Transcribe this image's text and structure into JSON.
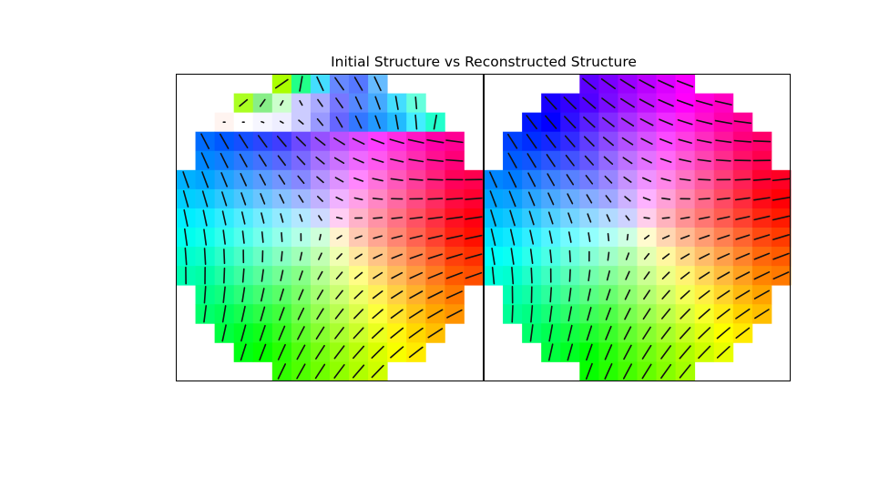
{
  "chart_data": {
    "type": "heatmap",
    "title": "Initial Structure vs Reconstructed Structure",
    "grid": "16x16 per panel, circular mask, color = in-plane angle (hue), stick = direction, length = in-plane magnitude",
    "panels": [
      {
        "name": "Initial Structure",
        "cells": [
          {
            "row": 0,
            "col": 5,
            "color": "#aaff00",
            "angle": 35,
            "mag": 0.9
          },
          {
            "row": 0,
            "col": 6,
            "color": "#22ff88",
            "angle": 80,
            "mag": 0.9
          },
          {
            "row": 0,
            "col": 7,
            "color": "#44ddff",
            "angle": 115,
            "mag": 0.9
          },
          {
            "row": 0,
            "col": 8,
            "color": "#6688ff",
            "angle": 125,
            "mag": 0.9
          },
          {
            "row": 0,
            "col": 9,
            "color": "#5577ff",
            "angle": 120,
            "mag": 0.9
          },
          {
            "row": 0,
            "col": 10,
            "color": "#66bbff",
            "angle": 115,
            "mag": 0.9
          },
          {
            "row": 1,
            "col": 3,
            "color": "#aaff22",
            "angle": 40,
            "mag": 0.6
          },
          {
            "row": 1,
            "col": 4,
            "color": "#88ee88",
            "angle": 55,
            "mag": 0.5
          },
          {
            "row": 1,
            "col": 5,
            "color": "#ccffcc",
            "angle": 60,
            "mag": 0.3
          },
          {
            "row": 1,
            "col": 6,
            "color": "#ccccff",
            "angle": 120,
            "mag": 0.3
          },
          {
            "row": 1,
            "col": 7,
            "color": "#aaaaff",
            "angle": 125,
            "mag": 0.5
          },
          {
            "row": 1,
            "col": 8,
            "color": "#7777ff",
            "angle": 125,
            "mag": 0.7
          },
          {
            "row": 1,
            "col": 9,
            "color": "#5588ff",
            "angle": 115,
            "mag": 0.8
          },
          {
            "row": 1,
            "col": 10,
            "color": "#44aaff",
            "angle": 110,
            "mag": 0.8
          },
          {
            "row": 1,
            "col": 11,
            "color": "#44ddff",
            "angle": 100,
            "mag": 0.8
          },
          {
            "row": 1,
            "col": 12,
            "color": "#66ffdd",
            "angle": 95,
            "mag": 0.7
          },
          {
            "row": 2,
            "col": 2,
            "color": "#fff4f0",
            "angle": 0,
            "mag": 0.1
          },
          {
            "row": 2,
            "col": 3,
            "color": "#ffffff",
            "angle": 0,
            "mag": 0.1
          },
          {
            "row": 2,
            "col": 4,
            "color": "#f6f6ff",
            "angle": 160,
            "mag": 0.15
          },
          {
            "row": 2,
            "col": 5,
            "color": "#eeeeff",
            "angle": 150,
            "mag": 0.2
          },
          {
            "row": 2,
            "col": 6,
            "color": "#ccccff",
            "angle": 140,
            "mag": 0.35
          },
          {
            "row": 2,
            "col": 7,
            "color": "#9999ff",
            "angle": 130,
            "mag": 0.5
          },
          {
            "row": 2,
            "col": 8,
            "color": "#6666ff",
            "angle": 120,
            "mag": 0.7
          },
          {
            "row": 2,
            "col": 9,
            "color": "#3377ff",
            "angle": 115,
            "mag": 0.8
          },
          {
            "row": 2,
            "col": 10,
            "color": "#2299ff",
            "angle": 110,
            "mag": 0.8
          },
          {
            "row": 2,
            "col": 11,
            "color": "#22bbff",
            "angle": 100,
            "mag": 0.85
          },
          {
            "row": 2,
            "col": 12,
            "color": "#44eeff",
            "angle": 95,
            "mag": 0.85
          },
          {
            "row": 2,
            "col": 13,
            "color": "#22ffcc",
            "angle": 80,
            "mag": 0.85
          }
        ]
      },
      {
        "name": "Reconstructed Structure",
        "cells": []
      }
    ]
  }
}
